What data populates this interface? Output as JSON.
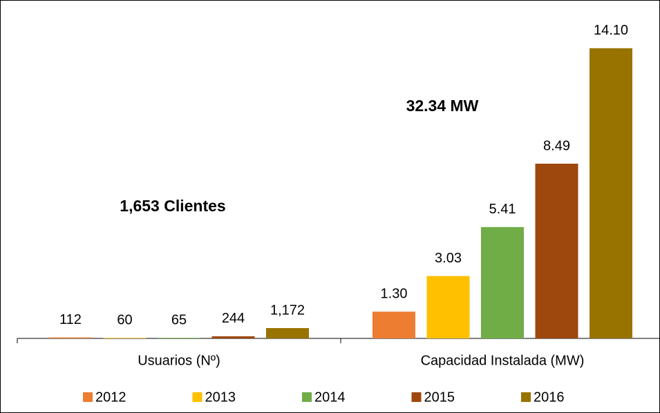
{
  "chart_data": {
    "type": "bar",
    "categories": [
      "Usuarios (Nº)",
      "Capacidad Instalada (MW)"
    ],
    "ylim": [
      [
        0,
        35000
      ],
      [
        0,
        15
      ]
    ],
    "annotations": [
      "1,653 Clientes",
      "32.34 MW"
    ],
    "legend": "bottom",
    "series": [
      {
        "name": "2012",
        "color": "#ed7d31",
        "values": [
          112,
          1.3
        ],
        "value_labels": [
          "112",
          "1.30"
        ]
      },
      {
        "name": "2013",
        "color": "#ffc000",
        "values": [
          60,
          3.03
        ],
        "value_labels": [
          "60",
          "3.03"
        ]
      },
      {
        "name": "2014",
        "color": "#70ad47",
        "values": [
          65,
          5.41
        ],
        "value_labels": [
          "65",
          "5.41"
        ]
      },
      {
        "name": "2015",
        "color": "#9e480e",
        "values": [
          244,
          8.49
        ],
        "value_labels": [
          "244",
          "8.49"
        ]
      },
      {
        "name": "2016",
        "color": "#997300",
        "values": [
          1172,
          14.1
        ],
        "value_labels": [
          "1,172",
          "14.10"
        ]
      }
    ]
  }
}
